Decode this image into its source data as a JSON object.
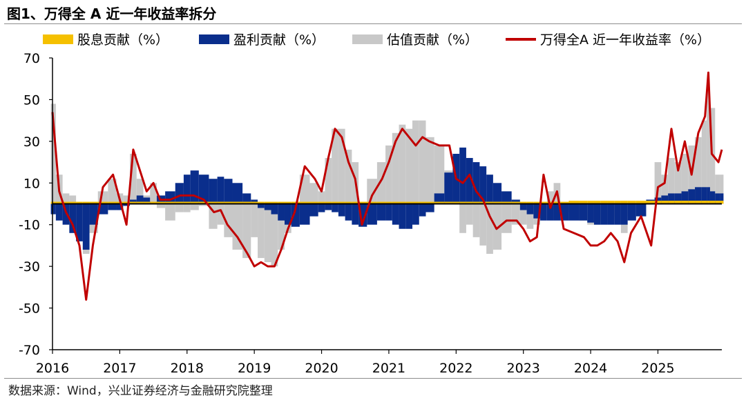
{
  "title": "图1、万得全 A 近一年收益率拆分",
  "source": "数据来源：Wind，兴业证券经济与金融研究院整理",
  "colors": {
    "dividend": "#f5c000",
    "earnings": "#0a2e8c",
    "valuation": "#c8c8c8",
    "return": "#c00000"
  },
  "chart_data": {
    "type": "area",
    "x_tick_labels": [
      "2016",
      "2017",
      "2018",
      "2019",
      "2020",
      "2021",
      "2022",
      "2023",
      "2024",
      "2025"
    ],
    "y_tick_labels": [
      "70",
      "50",
      "30",
      "10",
      "-10",
      "-30",
      "-50",
      "-70"
    ],
    "ylim": [
      -70,
      70
    ],
    "xlim": [
      2016.0,
      2025.95
    ],
    "xlabel": "",
    "ylabel": "",
    "grid": false,
    "legend": [
      {
        "name": "股息贡献（%）",
        "kind": "bar"
      },
      {
        "name": "盈利贡献（%）",
        "kind": "bar"
      },
      {
        "name": "估值贡献（%）",
        "kind": "bar"
      },
      {
        "name": "万得全A 近一年收益率（%）",
        "kind": "line"
      }
    ],
    "x": [
      2016.0,
      2016.1,
      2016.2,
      2016.3,
      2016.4,
      2016.5,
      2016.6,
      2016.75,
      2016.9,
      2017.0,
      2017.1,
      2017.2,
      2017.3,
      2017.4,
      2017.5,
      2017.6,
      2017.75,
      2017.9,
      2018.0,
      2018.1,
      2018.25,
      2018.4,
      2018.5,
      2018.6,
      2018.75,
      2018.9,
      2019.0,
      2019.1,
      2019.2,
      2019.3,
      2019.4,
      2019.5,
      2019.6,
      2019.75,
      2019.9,
      2020.0,
      2020.1,
      2020.2,
      2020.3,
      2020.4,
      2020.5,
      2020.6,
      2020.75,
      2020.9,
      2021.0,
      2021.1,
      2021.2,
      2021.3,
      2021.4,
      2021.5,
      2021.6,
      2021.75,
      2021.9,
      2022.0,
      2022.1,
      2022.2,
      2022.3,
      2022.4,
      2022.5,
      2022.6,
      2022.75,
      2022.9,
      2023.0,
      2023.1,
      2023.2,
      2023.3,
      2023.4,
      2023.5,
      2023.6,
      2023.75,
      2023.9,
      2024.0,
      2024.1,
      2024.2,
      2024.3,
      2024.4,
      2024.5,
      2024.6,
      2024.75,
      2024.9,
      2025.0,
      2025.1,
      2025.2,
      2025.3,
      2025.4,
      2025.5,
      2025.6,
      2025.7,
      2025.75,
      2025.8,
      2025.9,
      2025.95
    ],
    "series": [
      {
        "name": "股息贡献（%）",
        "values": [
          1,
          1,
          1,
          1,
          1,
          1,
          1,
          1,
          1,
          1,
          1,
          1,
          1,
          1,
          1,
          1,
          1,
          1,
          1,
          1,
          1,
          1,
          1,
          1,
          1,
          1,
          1,
          1,
          1,
          1,
          1,
          1,
          1,
          1,
          1,
          1,
          1,
          1,
          1,
          1,
          1,
          1,
          1,
          1,
          1,
          1,
          1,
          1,
          1,
          1,
          1,
          1,
          1,
          1,
          1,
          1,
          1,
          1,
          1,
          1,
          1,
          1,
          1,
          1,
          1,
          1,
          1,
          1,
          1,
          1.5,
          1.5,
          1.5,
          1.5,
          1.5,
          1.5,
          1.5,
          1.5,
          1.5,
          1.5,
          1.5,
          1.5,
          1.5,
          1.5,
          1.5,
          1.5,
          1.5,
          1.5,
          1.5,
          1.5,
          1.5,
          1.5,
          1.5
        ]
      },
      {
        "name": "盈利贡献（%）",
        "values": [
          -5,
          -8,
          -10,
          -14,
          -18,
          -22,
          -10,
          -5,
          -3,
          -3,
          -1,
          2,
          4,
          3,
          1,
          4,
          6,
          10,
          14,
          16,
          14,
          12,
          13,
          12,
          10,
          5,
          2,
          -2,
          -3,
          -5,
          -8,
          -10,
          -11,
          -10,
          -6,
          -4,
          -3,
          -4,
          -6,
          -8,
          -10,
          -11,
          -10,
          -8,
          -8,
          -10,
          -12,
          -12,
          -10,
          -6,
          -4,
          5,
          15,
          24,
          27,
          22,
          20,
          18,
          14,
          10,
          6,
          2,
          -3,
          -5,
          -7,
          -8,
          -8,
          -8,
          -8,
          -8,
          -8,
          -9,
          -10,
          -10,
          -10,
          -10,
          -10,
          -8,
          -6,
          2,
          3,
          4,
          5,
          5,
          6,
          7,
          8,
          8,
          8,
          6,
          5,
          5
        ]
      },
      {
        "name": "估值贡献（%）",
        "values": [
          48,
          14,
          5,
          4,
          0,
          -24,
          -14,
          6,
          12,
          5,
          4,
          24,
          12,
          4,
          10,
          -2,
          -8,
          -4,
          -4,
          -3,
          -1,
          -12,
          -10,
          -16,
          -22,
          -26,
          -16,
          -26,
          -28,
          -30,
          -22,
          -14,
          -6,
          14,
          10,
          6,
          22,
          36,
          36,
          26,
          20,
          -2,
          12,
          20,
          28,
          34,
          38,
          36,
          40,
          40,
          32,
          28,
          16,
          0,
          -14,
          -10,
          -16,
          -20,
          -24,
          -22,
          -14,
          -10,
          -10,
          -12,
          -10,
          0,
          6,
          10,
          -4,
          -6,
          -8,
          -10,
          -10,
          -8,
          -6,
          -8,
          -14,
          -6,
          -2,
          0,
          20,
          14,
          22,
          20,
          24,
          28,
          32,
          40,
          56,
          46,
          14,
          14
        ]
      },
      {
        "name": "万得全A 近一年收益率（%）",
        "values": [
          44,
          6,
          -4,
          -10,
          -20,
          -46,
          -20,
          8,
          14,
          2,
          -10,
          26,
          16,
          6,
          10,
          2,
          2,
          4,
          4,
          4,
          2,
          -4,
          -3,
          -10,
          -16,
          -24,
          -30,
          -28,
          -30,
          -30,
          -22,
          -12,
          -4,
          18,
          12,
          6,
          22,
          36,
          32,
          20,
          12,
          -10,
          4,
          12,
          20,
          30,
          36,
          32,
          28,
          32,
          30,
          28,
          28,
          12,
          10,
          14,
          6,
          2,
          -6,
          -12,
          -8,
          -8,
          -12,
          -18,
          -16,
          14,
          -2,
          6,
          -12,
          -14,
          -16,
          -20,
          -20,
          -18,
          -14,
          -18,
          -28,
          -14,
          -6,
          -20,
          8,
          10,
          36,
          16,
          30,
          14,
          34,
          42,
          63,
          24,
          20,
          26
        ]
      }
    ]
  }
}
